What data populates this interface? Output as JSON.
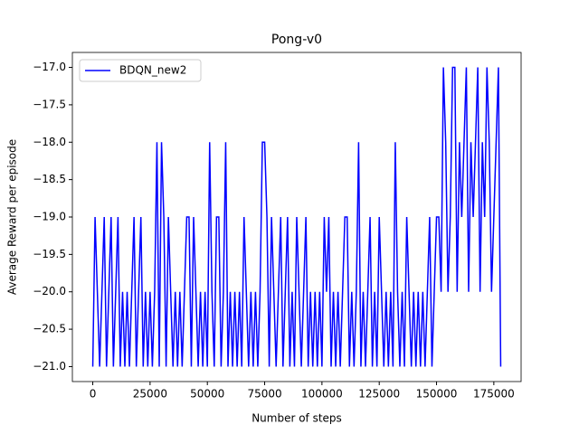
{
  "chart_data": {
    "type": "line",
    "title": "Pong-v0",
    "x_label": "Number of steps",
    "y_label": "Average Reward per episode",
    "x": [
      0,
      1000,
      2000,
      3000,
      4000,
      5000,
      6000,
      7000,
      8000,
      9000,
      10000,
      11000,
      12000,
      13000,
      14000,
      15000,
      16000,
      17000,
      18000,
      19000,
      20000,
      21000,
      22000,
      23000,
      24000,
      25000,
      26000,
      27000,
      28000,
      29000,
      30000,
      31000,
      32000,
      33000,
      34000,
      35000,
      36000,
      37000,
      38000,
      39000,
      40000,
      41000,
      42000,
      43000,
      44000,
      45000,
      46000,
      47000,
      48000,
      49000,
      50000,
      51000,
      52000,
      53000,
      54000,
      55000,
      56000,
      57000,
      58000,
      59000,
      60000,
      61000,
      62000,
      63000,
      64000,
      65000,
      66000,
      67000,
      68000,
      69000,
      70000,
      71000,
      72000,
      73000,
      74000,
      75000,
      76000,
      77000,
      78000,
      79000,
      80000,
      81000,
      82000,
      83000,
      84000,
      85000,
      86000,
      87000,
      88000,
      89000,
      90000,
      91000,
      92000,
      93000,
      94000,
      95000,
      96000,
      97000,
      98000,
      99000,
      100000,
      101000,
      102000,
      103000,
      104000,
      105000,
      106000,
      107000,
      108000,
      109000,
      110000,
      111000,
      112000,
      113000,
      114000,
      115000,
      116000,
      117000,
      118000,
      119000,
      120000,
      121000,
      122000,
      123000,
      124000,
      125000,
      126000,
      127000,
      128000,
      129000,
      130000,
      131000,
      132000,
      133000,
      134000,
      135000,
      136000,
      137000,
      138000,
      139000,
      140000,
      141000,
      142000,
      143000,
      144000,
      145000,
      146000,
      147000,
      148000,
      149000,
      150000,
      151000,
      152000,
      153000,
      154000,
      155000,
      156000,
      157000,
      158000,
      159000,
      160000,
      161000,
      162000,
      163000,
      164000,
      165000,
      166000,
      167000,
      168000,
      169000,
      170000,
      171000,
      172000,
      173000,
      174000,
      175000,
      176000,
      177000,
      178000
    ],
    "series": [
      {
        "name": "BDQN_new2",
        "color": "#0000ff",
        "values": [
          -21,
          -19,
          -20,
          -21,
          -20,
          -19,
          -21,
          -20,
          -19,
          -21,
          -20,
          -19,
          -21,
          -20,
          -21,
          -20,
          -21,
          -20,
          -19,
          -21,
          -20,
          -19,
          -21,
          -20,
          -21,
          -20,
          -21,
          -20,
          -18,
          -21,
          -18,
          -19,
          -21,
          -19,
          -20,
          -21,
          -20,
          -21,
          -20,
          -21,
          -20,
          -19,
          -19,
          -21,
          -19,
          -20,
          -21,
          -20,
          -21,
          -20,
          -21,
          -18,
          -20,
          -21,
          -19,
          -19,
          -21,
          -20,
          -18,
          -21,
          -20,
          -21,
          -20,
          -21,
          -20,
          -21,
          -19,
          -20,
          -21,
          -20,
          -21,
          -20,
          -21,
          -20,
          -18,
          -18,
          -19,
          -21,
          -19,
          -20,
          -21,
          -20,
          -19,
          -21,
          -20,
          -19,
          -21,
          -20,
          -21,
          -19,
          -20,
          -21,
          -20,
          -19,
          -21,
          -20,
          -21,
          -20,
          -21,
          -20,
          -21,
          -19,
          -20,
          -19,
          -21,
          -20,
          -21,
          -20,
          -21,
          -20,
          -19,
          -19,
          -21,
          -20,
          -21,
          -20,
          -18,
          -21,
          -20,
          -21,
          -20,
          -19,
          -21,
          -20,
          -21,
          -19,
          -20,
          -21,
          -20,
          -21,
          -20,
          -21,
          -18,
          -20,
          -21,
          -20,
          -21,
          -19,
          -20,
          -21,
          -20,
          -21,
          -20,
          -21,
          -20,
          -21,
          -20,
          -19,
          -21,
          -20,
          -19,
          -19,
          -20,
          -17,
          -18,
          -20,
          -19,
          -17,
          -17,
          -20,
          -18,
          -19,
          -18,
          -17,
          -20,
          -18,
          -19,
          -18,
          -17,
          -20,
          -18,
          -19,
          -17,
          -18,
          -20,
          -19,
          -18,
          -17,
          -21
        ]
      }
    ],
    "xlim": [
      -8900,
      186900
    ],
    "ylim": [
      -21.2,
      -16.8
    ],
    "xticks": [
      0,
      25000,
      50000,
      75000,
      100000,
      125000,
      150000,
      175000
    ],
    "yticks": [
      {
        "value": -21,
        "label": "−21.0"
      },
      {
        "value": -20.5,
        "label": "−20.5"
      },
      {
        "value": -20,
        "label": "−20.0"
      },
      {
        "value": -19.5,
        "label": "−19.5"
      },
      {
        "value": -19,
        "label": "−19.0"
      },
      {
        "value": -18.5,
        "label": "−18.5"
      },
      {
        "value": -18,
        "label": "−18.0"
      },
      {
        "value": -17.5,
        "label": "−17.5"
      },
      {
        "value": -17,
        "label": "−17.0"
      }
    ],
    "legend": "upper left"
  }
}
